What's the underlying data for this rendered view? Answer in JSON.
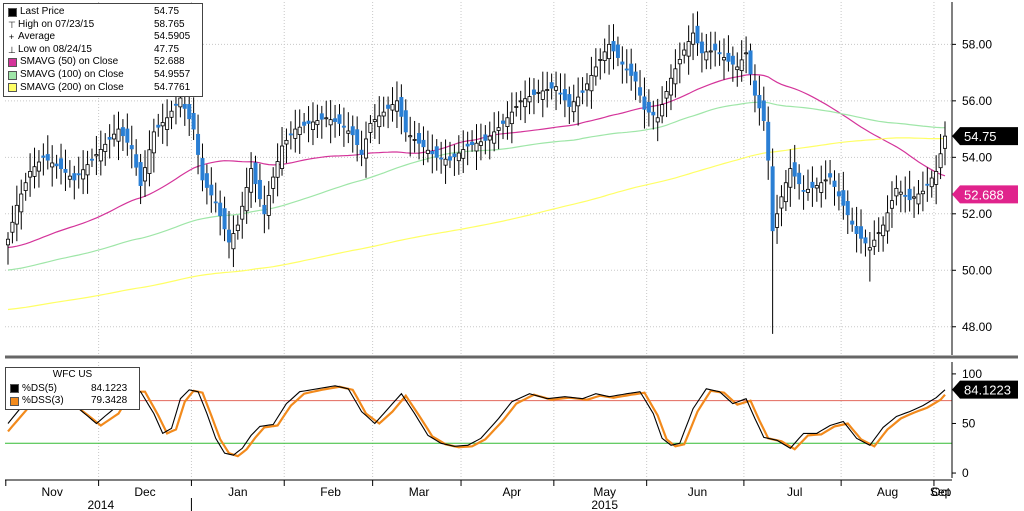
{
  "legend_main": [
    {
      "icon": "square-icon",
      "label": "Last Price",
      "value": "54.75",
      "color": "#000000"
    },
    {
      "icon": "high-marker-icon",
      "glyph": "⊤",
      "label": "High on 07/23/15",
      "value": "58.765"
    },
    {
      "icon": "average-marker-icon",
      "glyph": "+",
      "label": "Average",
      "value": "54.5905"
    },
    {
      "icon": "low-marker-icon",
      "glyph": "⊥",
      "label": "Low on 08/24/15",
      "value": "47.75"
    },
    {
      "icon": "square-icon",
      "label": "SMAVG (50) on Close",
      "value": "52.688",
      "color": "#d4349a"
    },
    {
      "icon": "square-icon",
      "label": "SMAVG (100) on Close",
      "value": "54.9557",
      "color": "#9fe6a8"
    },
    {
      "icon": "square-icon",
      "label": "SMAVG (200) on Close",
      "value": "54.7761",
      "color": "#ffff66"
    }
  ],
  "legend_osc": {
    "title": "WFC US",
    "rows": [
      {
        "icon": "square-icon",
        "label": "%DS(5)",
        "value": "84.1223",
        "color": "#000000"
      },
      {
        "icon": "square-icon",
        "label": "%DSS(3)",
        "value": "79.3428",
        "color": "#f28a1c"
      }
    ]
  },
  "chart_data": [
    {
      "type": "candlestick",
      "ylim": [
        47,
        59.5
      ],
      "y_ticks": [
        "48.00",
        "50.00",
        "52.00",
        "54.00",
        "56.00",
        "58.00"
      ],
      "x_months": [
        "Nov",
        "Dec",
        "Jan",
        "Feb",
        "Mar",
        "Apr",
        "May",
        "Jun",
        "Jul",
        "Aug",
        "Sep",
        "Oct"
      ],
      "x_years": [
        "2014",
        "2015"
      ],
      "price_tags": [
        {
          "value": 54.75,
          "label": "54.75",
          "bg": "#000000",
          "fg": "#ffffff"
        },
        {
          "value": 52.688,
          "label": "52.688",
          "bg": "#e0238c",
          "fg": "#ffffff"
        }
      ],
      "candle_colors": {
        "up": "#000000",
        "down": "#2a7fd4",
        "wick": "#000000"
      },
      "price_anchors": [
        [
          0,
          51.1
        ],
        [
          2,
          52.3
        ],
        [
          5,
          53.5
        ],
        [
          8,
          54.0
        ],
        [
          12,
          53.6
        ],
        [
          15,
          53.2
        ],
        [
          20,
          54.1
        ],
        [
          25,
          55.0
        ],
        [
          28,
          54.3
        ],
        [
          30,
          53.0
        ],
        [
          33,
          54.9
        ],
        [
          36,
          55.4
        ],
        [
          39,
          56.1
        ],
        [
          42,
          55.0
        ],
        [
          44,
          53.2
        ],
        [
          47,
          52.4
        ],
        [
          50,
          51.0
        ],
        [
          52,
          51.6
        ],
        [
          55,
          53.6
        ],
        [
          58,
          52.0
        ],
        [
          60,
          53.3
        ],
        [
          62,
          54.4
        ],
        [
          65,
          55.0
        ],
        [
          68,
          55.2
        ],
        [
          72,
          55.4
        ],
        [
          75,
          55.2
        ],
        [
          78,
          54.8
        ],
        [
          80,
          54.1
        ],
        [
          82,
          55.2
        ],
        [
          85,
          55.6
        ],
        [
          88,
          56.0
        ],
        [
          90,
          54.9
        ],
        [
          93,
          54.5
        ],
        [
          97,
          54.0
        ],
        [
          100,
          53.9
        ],
        [
          104,
          54.4
        ],
        [
          108,
          54.6
        ],
        [
          112,
          55.2
        ],
        [
          116,
          56.0
        ],
        [
          120,
          56.3
        ],
        [
          124,
          56.5
        ],
        [
          127,
          55.8
        ],
        [
          130,
          56.3
        ],
        [
          133,
          57.2
        ],
        [
          136,
          58.0
        ],
        [
          139,
          57.3
        ],
        [
          142,
          56.7
        ],
        [
          144,
          55.7
        ],
        [
          147,
          55.4
        ],
        [
          150,
          56.8
        ],
        [
          153,
          57.8
        ],
        [
          155,
          58.4
        ],
        [
          157,
          57.7
        ],
        [
          160,
          57.8
        ],
        [
          163,
          57.4
        ],
        [
          165,
          57.2
        ],
        [
          167,
          57.7
        ],
        [
          169,
          56.2
        ],
        [
          171,
          55.3
        ],
        [
          172,
          53.9
        ],
        [
          173,
          51.4
        ],
        [
          175,
          52.6
        ],
        [
          177,
          53.6
        ],
        [
          180,
          52.8
        ],
        [
          183,
          53.0
        ],
        [
          186,
          53.3
        ],
        [
          189,
          52.3
        ],
        [
          192,
          51.3
        ],
        [
          195,
          50.8
        ],
        [
          198,
          51.6
        ],
        [
          201,
          52.9
        ],
        [
          204,
          52.5
        ],
        [
          207,
          52.8
        ],
        [
          210,
          53.5
        ],
        [
          212,
          54.75
        ]
      ]
    },
    {
      "type": "line",
      "ylim": [
        -5,
        112
      ],
      "y_ticks": [
        "0",
        "50",
        "100"
      ],
      "reference_lines": [
        {
          "value": 73,
          "color": "#e3685c"
        },
        {
          "value": 30,
          "color": "#33bb33"
        }
      ],
      "value_tags": [
        {
          "value": 84.1223,
          "label": "84.1223",
          "bg": "#000000",
          "fg": "#ffffff"
        }
      ],
      "series": [
        {
          "name": "%DS(5)",
          "color": "#000000",
          "anchors": [
            [
              0,
              50
            ],
            [
              4,
              72
            ],
            [
              8,
              82
            ],
            [
              12,
              78
            ],
            [
              16,
              65
            ],
            [
              20,
              50
            ],
            [
              24,
              65
            ],
            [
              27,
              84
            ],
            [
              30,
              82
            ],
            [
              33,
              60
            ],
            [
              35,
              40
            ],
            [
              37,
              45
            ],
            [
              39,
              75
            ],
            [
              41,
              84
            ],
            [
              43,
              82
            ],
            [
              45,
              60
            ],
            [
              47,
              35
            ],
            [
              49,
              20
            ],
            [
              51,
              18
            ],
            [
              53,
              25
            ],
            [
              55,
              38
            ],
            [
              57,
              47
            ],
            [
              60,
              49
            ],
            [
              63,
              70
            ],
            [
              66,
              82
            ],
            [
              70,
              85
            ],
            [
              74,
              88
            ],
            [
              77,
              85
            ],
            [
              80,
              62
            ],
            [
              83,
              50
            ],
            [
              86,
              65
            ],
            [
              89,
              80
            ],
            [
              92,
              60
            ],
            [
              95,
              38
            ],
            [
              98,
              30
            ],
            [
              101,
              27
            ],
            [
              104,
              28
            ],
            [
              107,
              35
            ],
            [
              111,
              55
            ],
            [
              114,
              72
            ],
            [
              118,
              80
            ],
            [
              122,
              75
            ],
            [
              126,
              77
            ],
            [
              130,
              75
            ],
            [
              133,
              80
            ],
            [
              136,
              77
            ],
            [
              140,
              80
            ],
            [
              143,
              82
            ],
            [
              146,
              60
            ],
            [
              148,
              35
            ],
            [
              150,
              28
            ],
            [
              152,
              30
            ],
            [
              155,
              65
            ],
            [
              158,
              85
            ],
            [
              161,
              82
            ],
            [
              164,
              70
            ],
            [
              167,
              75
            ],
            [
              169,
              55
            ],
            [
              171,
              36
            ],
            [
              174,
              33
            ],
            [
              177,
              25
            ],
            [
              180,
              40
            ],
            [
              183,
              40
            ],
            [
              186,
              48
            ],
            [
              189,
              52
            ],
            [
              192,
              35
            ],
            [
              195,
              28
            ],
            [
              198,
              46
            ],
            [
              201,
              57
            ],
            [
              204,
              62
            ],
            [
              207,
              68
            ],
            [
              210,
              76
            ],
            [
              212,
              84
            ]
          ]
        },
        {
          "name": "%DSS(3)",
          "color": "#f28a1c",
          "anchors": [
            [
              0,
              42
            ],
            [
              5,
              68
            ],
            [
              9,
              80
            ],
            [
              13,
              76
            ],
            [
              17,
              62
            ],
            [
              21,
              48
            ],
            [
              25,
              60
            ],
            [
              28,
              82
            ],
            [
              31,
              82
            ],
            [
              34,
              58
            ],
            [
              36,
              40
            ],
            [
              38,
              44
            ],
            [
              40,
              72
            ],
            [
              42,
              83
            ],
            [
              44,
              81
            ],
            [
              46,
              58
            ],
            [
              48,
              34
            ],
            [
              50,
              20
            ],
            [
              52,
              17
            ],
            [
              54,
              24
            ],
            [
              56,
              36
            ],
            [
              58,
              46
            ],
            [
              61,
              48
            ],
            [
              64,
              68
            ],
            [
              67,
              80
            ],
            [
              71,
              84
            ],
            [
              75,
              87
            ],
            [
              78,
              84
            ],
            [
              81,
              60
            ],
            [
              84,
              50
            ],
            [
              87,
              62
            ],
            [
              90,
              78
            ],
            [
              93,
              58
            ],
            [
              96,
              37
            ],
            [
              99,
              29
            ],
            [
              102,
              26
            ],
            [
              105,
              27
            ],
            [
              108,
              34
            ],
            [
              112,
              53
            ],
            [
              115,
              70
            ],
            [
              119,
              79
            ],
            [
              123,
              74
            ],
            [
              127,
              76
            ],
            [
              131,
              74
            ],
            [
              134,
              78
            ],
            [
              137,
              76
            ],
            [
              141,
              79
            ],
            [
              144,
              81
            ],
            [
              147,
              58
            ],
            [
              149,
              34
            ],
            [
              151,
              27
            ],
            [
              153,
              29
            ],
            [
              156,
              62
            ],
            [
              159,
              83
            ],
            [
              162,
              81
            ],
            [
              165,
              69
            ],
            [
              168,
              73
            ],
            [
              170,
              53
            ],
            [
              172,
              35
            ],
            [
              175,
              32
            ],
            [
              178,
              24
            ],
            [
              181,
              38
            ],
            [
              184,
              39
            ],
            [
              187,
              47
            ],
            [
              190,
              50
            ],
            [
              193,
              34
            ],
            [
              196,
              27
            ],
            [
              199,
              44
            ],
            [
              202,
              55
            ],
            [
              205,
              61
            ],
            [
              208,
              66
            ],
            [
              211,
              74
            ],
            [
              212,
              79
            ]
          ]
        }
      ]
    }
  ]
}
